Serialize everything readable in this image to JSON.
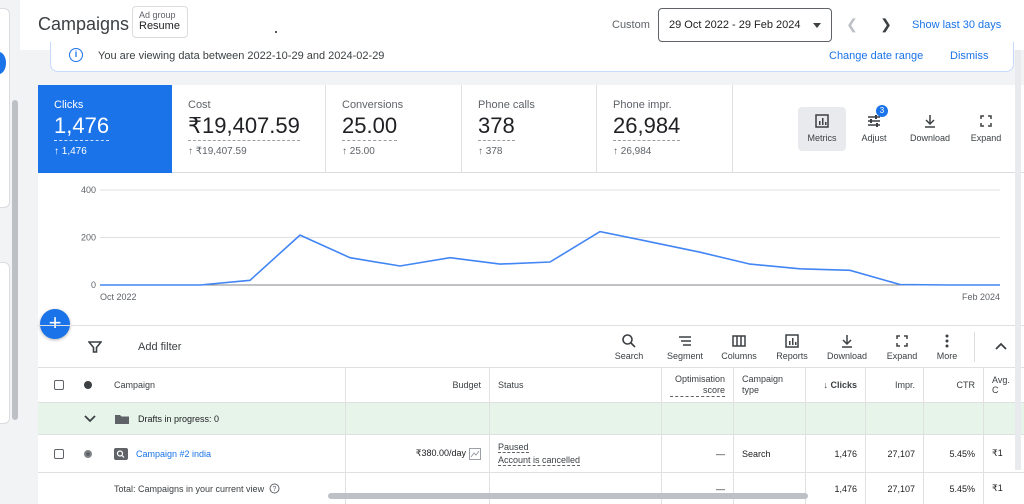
{
  "header": {
    "title": "Campaigns",
    "adgroup_label": "Ad group",
    "adgroup_value": "Resume",
    "date_mode": "Custom",
    "date_range": "29 Oct 2022 - 29 Feb 2024",
    "show_last": "Show last 30 days"
  },
  "banner": {
    "message": "You are viewing data between 2022-10-29 and 2024-02-29",
    "change_link": "Change date range",
    "dismiss_link": "Dismiss"
  },
  "tiles": [
    {
      "label": "Clicks",
      "value": "1,476",
      "delta": "↑ 1,476"
    },
    {
      "label": "Cost",
      "value": "₹19,407.59",
      "delta": "↑ ₹19,407.59"
    },
    {
      "label": "Conversions",
      "value": "25.00",
      "delta": "↑ 25.00"
    },
    {
      "label": "Phone calls",
      "value": "378",
      "delta": "↑ 378"
    },
    {
      "label": "Phone impr.",
      "value": "26,984",
      "delta": "↑ 26,984"
    }
  ],
  "tools": {
    "metrics": "Metrics",
    "adjust": "Adjust",
    "adjust_badge": "3",
    "download": "Download",
    "expand": "Expand"
  },
  "chart_data": {
    "type": "line",
    "x_start_label": "Oct 2022",
    "x_end_label": "Feb 2024",
    "y_ticks": [
      "400",
      "200",
      "0"
    ],
    "ylim": [
      0,
      400
    ],
    "grid": true,
    "series": [
      {
        "values": [
          0,
          0,
          0,
          20,
          210,
          115,
          80,
          115,
          88,
          97,
          225,
          182,
          138,
          88,
          68,
          62,
          2,
          0,
          0
        ],
        "color": "#4285f4"
      }
    ]
  },
  "toolbar": {
    "add_filter": "Add filter",
    "search": "Search",
    "segment": "Segment",
    "columns": "Columns",
    "reports": "Reports",
    "download": "Download",
    "expand": "Expand",
    "more": "More"
  },
  "table": {
    "headers": {
      "campaign": "Campaign",
      "budget": "Budget",
      "status": "Status",
      "opt_score": "Optimisation score",
      "campaign_type": "Campaign type",
      "clicks": "↓ Clicks",
      "impr": "Impr.",
      "ctr": "CTR",
      "avg": "Avg. C"
    },
    "drafts": "Drafts in progress: 0",
    "row": {
      "campaign": "Campaign #2 india",
      "budget": "₹380.00/day",
      "status_1": "Paused",
      "status_2": "Account is cancelled",
      "opt_score": "—",
      "campaign_type": "Search",
      "clicks": "1,476",
      "impr": "27,107",
      "ctr": "5.45%",
      "avg": "₹1"
    },
    "total": {
      "label": "Total: Campaigns in your current view",
      "opt_score": "—",
      "clicks": "1,476",
      "impr": "27,107",
      "ctr": "5.45%",
      "avg": "₹1"
    }
  }
}
